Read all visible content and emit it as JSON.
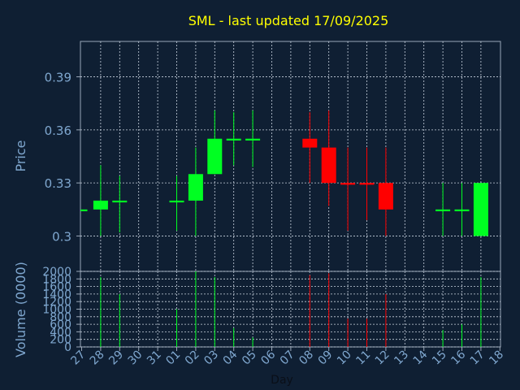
{
  "chart_data": {
    "type": "candlestick",
    "title": "SML - last updated 17/09/2025",
    "xlabel": "Day",
    "ylabel": "Price",
    "volume_label": "Volume (0000)",
    "ylim": [
      0.28,
      0.41
    ],
    "yticks": [
      "0.39",
      "0.36",
      "0.33",
      "0.3"
    ],
    "ytick_values": [
      0.39,
      0.36,
      0.33,
      0.3
    ],
    "volume_ylim": [
      0,
      2000
    ],
    "volume_ticks": [
      "2000",
      "1800",
      "1600",
      "1400",
      "1200",
      "1000",
      "800",
      "600",
      "400",
      "200",
      "0"
    ],
    "volume_tick_values": [
      2000,
      1800,
      1600,
      1400,
      1200,
      1000,
      800,
      600,
      400,
      200,
      0
    ],
    "days": [
      "27",
      "28",
      "29",
      "30",
      "31",
      "01",
      "02",
      "03",
      "04",
      "05",
      "06",
      "07",
      "08",
      "09",
      "10",
      "11",
      "12",
      "13",
      "14",
      "15",
      "16",
      "17",
      "18"
    ],
    "candles": [
      {
        "day": "28",
        "open": 0.315,
        "high": 0.34,
        "low": 0.3,
        "close": 0.32,
        "volume": 1850
      },
      {
        "day": "29",
        "open": 0.319,
        "high": 0.334,
        "low": 0.302,
        "close": 0.32,
        "volume": 1400
      },
      {
        "day": "01",
        "open": 0.319,
        "high": 0.334,
        "low": 0.303,
        "close": 0.32,
        "volume": 1000
      },
      {
        "day": "02",
        "open": 0.32,
        "high": 0.35,
        "low": 0.3,
        "close": 0.335,
        "volume": 2000
      },
      {
        "day": "03",
        "open": 0.335,
        "high": 0.371,
        "low": 0.335,
        "close": 0.355,
        "volume": 1850
      },
      {
        "day": "04",
        "open": 0.354,
        "high": 0.37,
        "low": 0.34,
        "close": 0.355,
        "volume": 500
      },
      {
        "day": "05",
        "open": 0.354,
        "high": 0.371,
        "low": 0.339,
        "close": 0.355,
        "volume": 250
      },
      {
        "day": "08",
        "open": 0.355,
        "high": 0.37,
        "low": 0.33,
        "close": 0.35,
        "volume": 1900
      },
      {
        "day": "09",
        "open": 0.35,
        "high": 0.371,
        "low": 0.317,
        "close": 0.33,
        "volume": 1950
      },
      {
        "day": "10",
        "open": 0.33,
        "high": 0.35,
        "low": 0.303,
        "close": 0.329,
        "volume": 750
      },
      {
        "day": "11",
        "open": 0.33,
        "high": 0.35,
        "low": 0.309,
        "close": 0.329,
        "volume": 750
      },
      {
        "day": "12",
        "open": 0.33,
        "high": 0.35,
        "low": 0.3,
        "close": 0.315,
        "volume": 1400
      },
      {
        "day": "15",
        "open": 0.314,
        "high": 0.33,
        "low": 0.3,
        "close": 0.315,
        "volume": 450
      },
      {
        "day": "16",
        "open": 0.314,
        "high": 0.33,
        "low": 0.3,
        "close": 0.315,
        "volume": 600
      },
      {
        "day": "17",
        "open": 0.3,
        "high": 0.33,
        "low": 0.3,
        "close": 0.33,
        "volume": 1850
      }
    ],
    "pre_candle": {
      "day": "27",
      "open": 0.314,
      "close": 0.315,
      "high": 0.315,
      "low": 0.314
    },
    "colors": {
      "background": "#0f1f33",
      "frame": "#9aa7b8",
      "grid": "#c9d3df",
      "title": "#ffff00",
      "label": "#7fa7cf",
      "tick_label": "#7fa7cf",
      "up": "#00ff22",
      "down": "#ff0000"
    },
    "grid": true
  }
}
